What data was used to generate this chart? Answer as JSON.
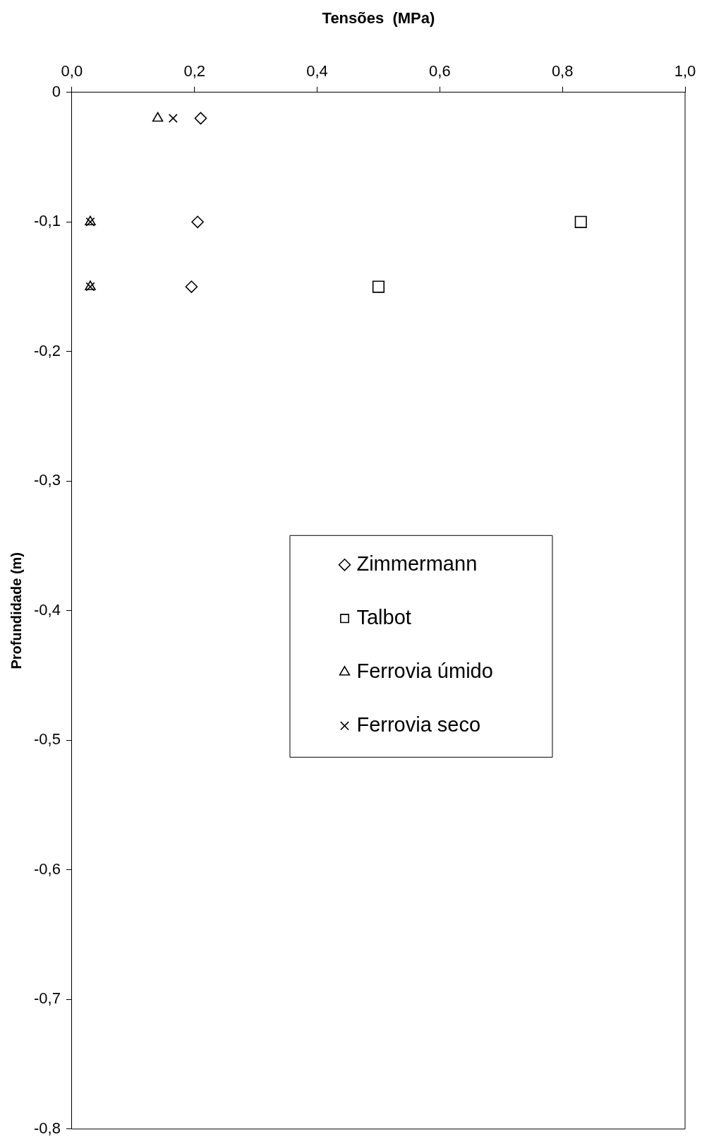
{
  "chart_data": {
    "type": "scatter",
    "xlabel": "Tensões  (MPa)",
    "ylabel": "Profundidade (m)",
    "xlim": [
      0,
      1
    ],
    "xticks": [
      {
        "value": 0,
        "label": "0,0"
      },
      {
        "value": 0.2,
        "label": "0,2"
      },
      {
        "value": 0.4,
        "label": "0,4"
      },
      {
        "value": 0.6,
        "label": "0,6"
      },
      {
        "value": 0.8,
        "label": "0,8"
      },
      {
        "value": 1,
        "label": "1,0"
      }
    ],
    "ylim": [
      -0.8,
      0
    ],
    "yticks": [
      0,
      {
        "value": -0.1,
        "label": "-0,1"
      },
      {
        "value": -0.2,
        "label": "-0,2"
      },
      {
        "value": -0.3,
        "label": "-0,3"
      },
      {
        "value": -0.4,
        "label": "-0,4"
      },
      {
        "value": -0.5,
        "label": "-0,5"
      },
      {
        "value": -0.6,
        "label": "-0,6"
      },
      {
        "value": -0.7,
        "label": "-0,7"
      },
      {
        "value": -0.8,
        "label": "-0,8"
      }
    ],
    "grid": false,
    "legend": "center",
    "series": [
      {
        "name": "Zimmermann",
        "color": "#000000",
        "marker": "diamond",
        "x": [
          0.21,
          0.205,
          0.195
        ],
        "values": [
          -0.02,
          -0.1,
          -0.15
        ]
      },
      {
        "name": "Talbot",
        "color": "#000000",
        "marker": "square",
        "x": [
          0.83,
          0.5
        ],
        "values": [
          -0.1,
          -0.15
        ]
      },
      {
        "name": "Ferrovia úmido",
        "color": "#000000",
        "marker": "triangle",
        "x": [
          0.14,
          0.03,
          0.03
        ],
        "values": [
          -0.02,
          -0.1,
          -0.15
        ]
      },
      {
        "name": "Ferrovia seco",
        "color": "#000000",
        "marker": "cross",
        "x": [
          0.165,
          0.03,
          0.03
        ],
        "values": [
          -0.02,
          -0.1,
          -0.15
        ]
      }
    ]
  }
}
